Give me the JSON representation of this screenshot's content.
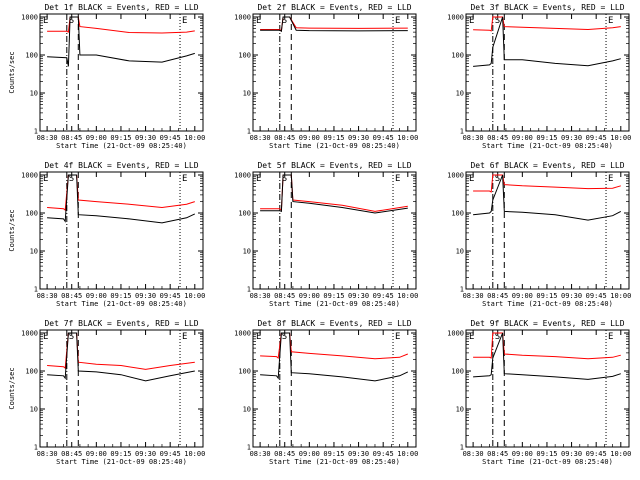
{
  "chart_data": [
    {
      "type": "line",
      "title": "Det 1f BLACK = Events, RED = LLD",
      "ylabel": "Counts/sec",
      "xlabel": "Start Time (21-Oct-09 08:25:40)",
      "x_ticks": [
        "08:30",
        "08:45",
        "09:00",
        "09:15",
        "09:30",
        "09:45",
        "10:00"
      ],
      "y_ticks": [
        "1",
        "10",
        "100",
        "1000"
      ],
      "ylim": [
        1,
        1200
      ],
      "y_scale": "log",
      "markers": {
        "left": "E",
        "mid": "S",
        "right": "E"
      },
      "series": [
        {
          "color": "#ff0000",
          "x": [
            "08:30",
            "08:42",
            "08:43",
            "08:44",
            "08:49",
            "08:50",
            "09:00",
            "09:20",
            "09:40",
            "09:55",
            "10:00"
          ],
          "values": [
            420,
            420,
            400,
            1000,
            1000,
            560,
            500,
            390,
            380,
            400,
            430
          ]
        },
        {
          "color": "#000000",
          "x": [
            "08:30",
            "08:42",
            "08:43",
            "08:44",
            "08:49",
            "08:50",
            "09:00",
            "09:20",
            "09:40",
            "09:55",
            "10:00"
          ],
          "values": [
            90,
            85,
            50,
            1000,
            1000,
            100,
            100,
            70,
            65,
            95,
            110
          ]
        }
      ]
    },
    {
      "type": "line",
      "title": "Det 2f BLACK = Events, RED = LLD",
      "ylabel": "",
      "xlabel": "Start Time (21-Oct-09 08:25:40)",
      "x_ticks": [
        "08:30",
        "08:45",
        "09:00",
        "09:15",
        "09:30",
        "09:45",
        "10:00"
      ],
      "y_ticks": [
        "1",
        "10",
        "100",
        "1000"
      ],
      "ylim": [
        1,
        1200
      ],
      "y_scale": "log",
      "markers": {
        "left": "E",
        "mid": "S",
        "right": "E"
      },
      "series": [
        {
          "color": "#ff0000",
          "x": [
            "08:30",
            "08:42",
            "08:43",
            "08:44",
            "08:48",
            "08:52",
            "09:00",
            "09:30",
            "10:00"
          ],
          "values": [
            470,
            470,
            440,
            1000,
            1000,
            520,
            510,
            500,
            510
          ]
        },
        {
          "color": "#000000",
          "x": [
            "08:30",
            "08:42",
            "08:43",
            "08:44",
            "08:48",
            "08:52",
            "09:00",
            "09:30",
            "10:00"
          ],
          "values": [
            450,
            450,
            420,
            1000,
            1000,
            450,
            440,
            430,
            440
          ]
        }
      ]
    },
    {
      "type": "line",
      "title": "Det 3f BLACK = Events, RED = LLD",
      "ylabel": "",
      "xlabel": "Start Time (21-Oct-09 08:25:40)",
      "x_ticks": [
        "08:30",
        "08:45",
        "09:00",
        "09:15",
        "09:30",
        "09:45",
        "10:00"
      ],
      "y_ticks": [
        "1",
        "10",
        "100",
        "1000"
      ],
      "ylim": [
        1,
        1200
      ],
      "y_scale": "log",
      "markers": {
        "left": "E",
        "mid": "S",
        "right": "E"
      },
      "series": [
        {
          "color": "#ff0000",
          "x": [
            "08:30",
            "08:40",
            "08:41",
            "08:42",
            "08:48",
            "08:49",
            "09:00",
            "09:20",
            "09:40",
            "09:55",
            "10:00"
          ],
          "values": [
            460,
            450,
            430,
            1000,
            1000,
            560,
            540,
            500,
            470,
            520,
            560
          ]
        },
        {
          "color": "#000000",
          "x": [
            "08:30",
            "08:40",
            "08:41",
            "08:42",
            "08:48",
            "08:49",
            "09:00",
            "09:20",
            "09:40",
            "09:55",
            "10:00"
          ],
          "values": [
            50,
            55,
            60,
            160,
            1000,
            75,
            75,
            60,
            52,
            70,
            80
          ]
        }
      ]
    },
    {
      "type": "line",
      "title": "Det 4f BLACK = Events, RED = LLD",
      "ylabel": "Counts/sec",
      "xlabel": "Start Time (21-Oct-09 08:25:40)",
      "x_ticks": [
        "08:30",
        "08:45",
        "09:00",
        "09:15",
        "09:30",
        "09:45",
        "10:00"
      ],
      "y_ticks": [
        "1",
        "10",
        "100",
        "1000"
      ],
      "ylim": [
        1,
        1200
      ],
      "y_scale": "log",
      "markers": {
        "left": "E",
        "mid": "S",
        "right": "E"
      },
      "series": [
        {
          "color": "#ff0000",
          "x": [
            "08:30",
            "08:40",
            "08:41",
            "08:43",
            "08:48",
            "08:49",
            "09:00",
            "09:20",
            "09:40",
            "09:55",
            "10:00"
          ],
          "values": [
            140,
            130,
            120,
            1000,
            1000,
            220,
            200,
            170,
            140,
            170,
            200
          ]
        },
        {
          "color": "#000000",
          "x": [
            "08:30",
            "08:40",
            "08:41",
            "08:43",
            "08:48",
            "08:49",
            "09:00",
            "09:20",
            "09:40",
            "09:55",
            "10:00"
          ],
          "values": [
            75,
            70,
            60,
            1000,
            1000,
            90,
            85,
            70,
            55,
            75,
            95
          ]
        }
      ]
    },
    {
      "type": "line",
      "title": "Det 5f BLACK = Events, RED = LLD",
      "ylabel": "",
      "xlabel": "Start Time (21-Oct-09 08:25:40)",
      "x_ticks": [
        "08:30",
        "08:45",
        "09:00",
        "09:15",
        "09:30",
        "09:45",
        "10:00"
      ],
      "y_ticks": [
        "1",
        "10",
        "100",
        "1000"
      ],
      "ylim": [
        1,
        1200
      ],
      "y_scale": "log",
      "markers": {
        "left": "E",
        "mid": "S",
        "right": "E"
      },
      "series": [
        {
          "color": "#ff0000",
          "x": [
            "08:30",
            "08:42",
            "08:43",
            "08:44",
            "08:49",
            "08:50",
            "09:00",
            "09:20",
            "09:40",
            "10:00"
          ],
          "values": [
            130,
            130,
            120,
            1000,
            1000,
            220,
            200,
            160,
            110,
            150
          ]
        },
        {
          "color": "#000000",
          "x": [
            "08:30",
            "08:42",
            "08:43",
            "08:44",
            "08:49",
            "08:50",
            "09:00",
            "09:20",
            "09:40",
            "10:00"
          ],
          "values": [
            115,
            115,
            110,
            1000,
            1000,
            200,
            180,
            140,
            100,
            135
          ]
        }
      ]
    },
    {
      "type": "line",
      "title": "Det 6f BLACK = Events, RED = LLD",
      "ylabel": "",
      "xlabel": "Start Time (21-Oct-09 08:25:40)",
      "x_ticks": [
        "08:30",
        "08:45",
        "09:00",
        "09:15",
        "09:30",
        "09:45",
        "10:00"
      ],
      "y_ticks": [
        "1",
        "10",
        "100",
        "1000"
      ],
      "ylim": [
        1,
        1200
      ],
      "y_scale": "log",
      "markers": {
        "left": "E",
        "mid": "S",
        "right": "E"
      },
      "series": [
        {
          "color": "#ff0000",
          "x": [
            "08:30",
            "08:40",
            "08:41",
            "08:42",
            "08:48",
            "08:49",
            "09:00",
            "09:20",
            "09:40",
            "09:55",
            "10:00"
          ],
          "values": [
            380,
            380,
            360,
            1000,
            1000,
            560,
            520,
            480,
            440,
            450,
            520
          ]
        },
        {
          "color": "#000000",
          "x": [
            "08:30",
            "08:40",
            "08:41",
            "08:42",
            "08:48",
            "08:49",
            "09:00",
            "09:20",
            "09:40",
            "09:55",
            "10:00"
          ],
          "values": [
            90,
            100,
            110,
            220,
            1000,
            110,
            105,
            90,
            65,
            85,
            110
          ]
        }
      ]
    },
    {
      "type": "line",
      "title": "Det 7f BLACK = Events, RED = LLD",
      "ylabel": "Counts/sec",
      "xlabel": "Start Time (21-Oct-09 08:25:40)",
      "x_ticks": [
        "08:30",
        "08:45",
        "09:00",
        "09:15",
        "09:30",
        "09:45",
        "10:00"
      ],
      "y_ticks": [
        "1",
        "10",
        "100",
        "1000"
      ],
      "ylim": [
        1,
        1200
      ],
      "y_scale": "log",
      "markers": {
        "left": "E",
        "mid": "S",
        "right": "E"
      },
      "series": [
        {
          "color": "#ff0000",
          "x": [
            "08:30",
            "08:40",
            "08:41",
            "08:43",
            "08:48",
            "08:49",
            "09:00",
            "09:15",
            "09:30",
            "09:45",
            "10:00"
          ],
          "values": [
            140,
            130,
            120,
            1000,
            1000,
            170,
            150,
            140,
            110,
            140,
            170
          ]
        },
        {
          "color": "#000000",
          "x": [
            "08:30",
            "08:40",
            "08:41",
            "08:43",
            "08:48",
            "08:49",
            "09:00",
            "09:15",
            "09:30",
            "09:45",
            "10:00"
          ],
          "values": [
            80,
            75,
            65,
            1000,
            1000,
            100,
            95,
            80,
            55,
            75,
            100
          ]
        }
      ]
    },
    {
      "type": "line",
      "title": "Det 8f BLACK = Events, RED = LLD",
      "ylabel": "",
      "xlabel": "Start Time (21-Oct-09 08:25:40)",
      "x_ticks": [
        "08:30",
        "08:45",
        "09:00",
        "09:15",
        "09:30",
        "09:45",
        "10:00"
      ],
      "y_ticks": [
        "1",
        "10",
        "100",
        "1000"
      ],
      "ylim": [
        1,
        1200
      ],
      "y_scale": "log",
      "markers": {
        "left": "E",
        "mid": "S",
        "right": "E"
      },
      "series": [
        {
          "color": "#ff0000",
          "x": [
            "08:30",
            "08:40",
            "08:41",
            "08:43",
            "08:48",
            "08:49",
            "09:00",
            "09:20",
            "09:40",
            "09:55",
            "10:00"
          ],
          "values": [
            250,
            240,
            220,
            1000,
            1000,
            320,
            290,
            250,
            210,
            230,
            280
          ]
        },
        {
          "color": "#000000",
          "x": [
            "08:30",
            "08:40",
            "08:41",
            "08:43",
            "08:48",
            "08:49",
            "09:00",
            "09:20",
            "09:40",
            "09:55",
            "10:00"
          ],
          "values": [
            80,
            75,
            65,
            1000,
            1000,
            90,
            85,
            70,
            55,
            75,
            95
          ]
        }
      ]
    },
    {
      "type": "line",
      "title": "Det 9f BLACK = Events, RED = LLD",
      "ylabel": "",
      "xlabel": "Start Time (21-Oct-09 08:25:40)",
      "x_ticks": [
        "08:30",
        "08:45",
        "09:00",
        "09:15",
        "09:30",
        "09:45",
        "10:00"
      ],
      "y_ticks": [
        "1",
        "10",
        "100",
        "1000"
      ],
      "ylim": [
        1,
        1200
      ],
      "y_scale": "log",
      "markers": {
        "left": "E",
        "mid": "S",
        "right": "E"
      },
      "series": [
        {
          "color": "#ff0000",
          "x": [
            "08:30",
            "08:40",
            "08:41",
            "08:42",
            "08:48",
            "08:49",
            "09:00",
            "09:20",
            "09:40",
            "09:55",
            "10:00"
          ],
          "values": [
            230,
            230,
            220,
            1000,
            1000,
            280,
            260,
            240,
            210,
            230,
            260
          ]
        },
        {
          "color": "#000000",
          "x": [
            "08:30",
            "08:40",
            "08:41",
            "08:42",
            "08:48",
            "08:49",
            "09:00",
            "09:20",
            "09:40",
            "09:55",
            "10:00"
          ],
          "values": [
            70,
            75,
            80,
            220,
            1000,
            85,
            80,
            70,
            60,
            72,
            85
          ]
        }
      ]
    }
  ]
}
